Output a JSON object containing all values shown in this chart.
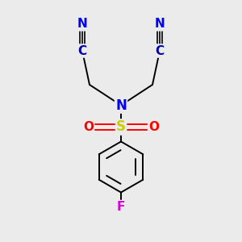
{
  "background_color": "#ebebeb",
  "fig_size": [
    3.0,
    3.0
  ],
  "dpi": 100,
  "atom_colors": {
    "N": "#0000ee",
    "S": "#cccc00",
    "O": "#ff0000",
    "F": "#dd00dd",
    "C_nitrile": "#0000aa",
    "C": "#000000"
  },
  "bond_color": "#000000",
  "bond_lw": 1.4,
  "font_size": 11
}
